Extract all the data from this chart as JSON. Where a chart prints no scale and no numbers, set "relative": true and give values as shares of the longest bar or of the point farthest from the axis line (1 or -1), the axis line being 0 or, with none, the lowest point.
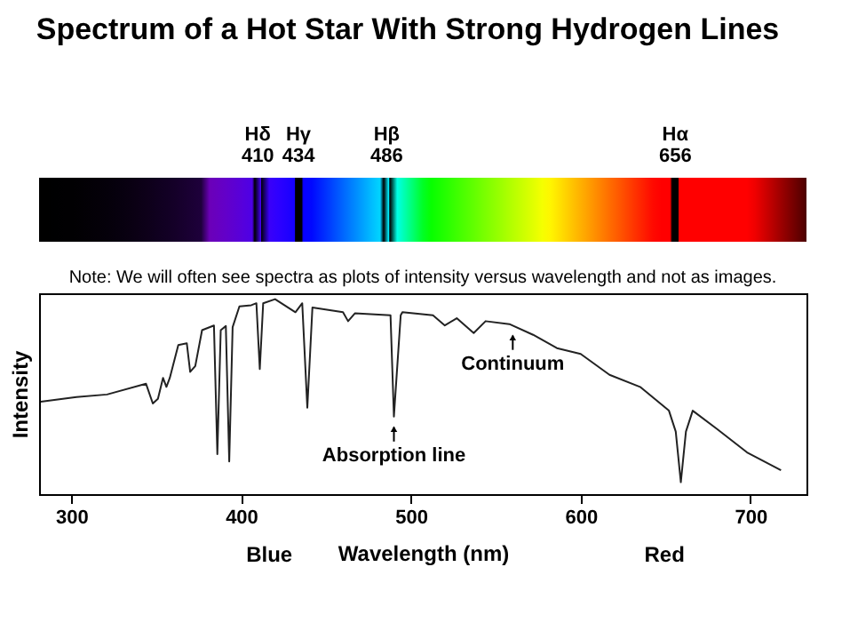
{
  "chart_data": {
    "type": "line",
    "relative": true,
    "title": "Spectrum of a Hot Star With Strong Hydrogen Lines",
    "xlabel": "Wavelength (nm)",
    "ylabel": "Intensity",
    "xlim": [
      281,
      733
    ],
    "xticks": [
      300,
      400,
      500,
      600,
      700
    ],
    "grid": false,
    "marker": "none",
    "line_style": "solid",
    "x": [
      282,
      303,
      321,
      344,
      348,
      351,
      354,
      356,
      358,
      363,
      368,
      370,
      373,
      377,
      384,
      386,
      388,
      391,
      393,
      395,
      399,
      406,
      409,
      411,
      413,
      420,
      432,
      436,
      439,
      442,
      460,
      463,
      467,
      488,
      490,
      494,
      495,
      513,
      520,
      527,
      537,
      544,
      558,
      572,
      586,
      600,
      617,
      635,
      652,
      656,
      659,
      662,
      666,
      680,
      698,
      701,
      718
    ],
    "series": [
      {
        "color": "#222222",
        "values": [
          0.474,
          0.498,
          0.511,
          0.566,
          0.465,
          0.489,
          0.596,
          0.55,
          0.596,
          0.765,
          0.774,
          0.627,
          0.657,
          0.841,
          0.865,
          0.205,
          0.841,
          0.862,
          0.168,
          0.856,
          0.963,
          0.969,
          0.979,
          0.642,
          0.979,
          1.0,
          0.933,
          0.979,
          0.443,
          0.957,
          0.933,
          0.887,
          0.927,
          0.917,
          0.398,
          0.917,
          0.933,
          0.917,
          0.865,
          0.902,
          0.826,
          0.887,
          0.872,
          0.817,
          0.749,
          0.719,
          0.612,
          0.55,
          0.428,
          0.321,
          0.061,
          0.321,
          0.428,
          0.336,
          0.214,
          0.2,
          0.122
        ]
      }
    ],
    "annotations": [
      "Hδ\n410",
      "Hγ\n434",
      "Hβ\n486",
      "Hα\n656",
      "Note: We will often see spectra as plots of intensity versus wavelength and not as images.",
      {
        "text": "Continuum",
        "x": 560,
        "y": 0.84
      },
      {
        "text": "Absorption line",
        "x": 490,
        "y": 0.37
      },
      "Blue",
      "Red"
    ]
  }
}
